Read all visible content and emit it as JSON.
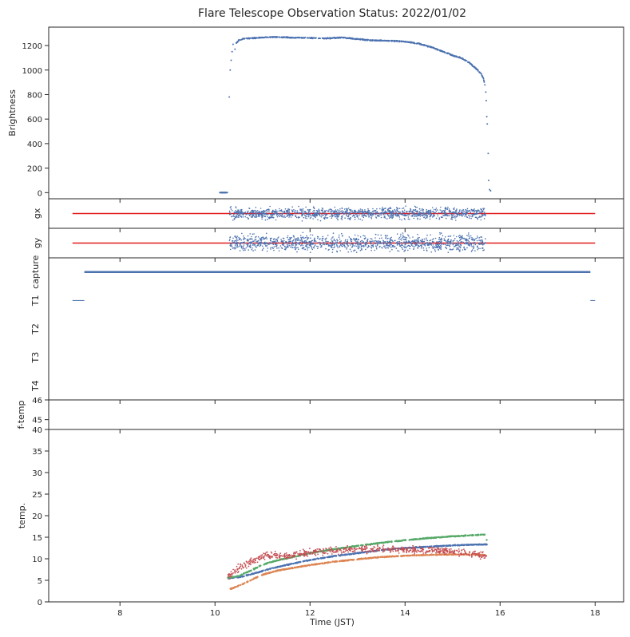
{
  "chart_data": {
    "title": "Flare Telescope Observation Status: 2022/01/02",
    "xlabel": "Time (JST)",
    "xlim": [
      6.5,
      18.6
    ],
    "xticks": [
      "8",
      "10",
      "12",
      "14",
      "16",
      "18"
    ],
    "colors": {
      "blue": "#4c72b0",
      "orange": "#dd8452",
      "green": "#55a868",
      "red": "#c44e52",
      "refline": "#e31a1c",
      "axes": "#262626"
    },
    "panels": [
      {
        "id": "brightness",
        "type": "scatter",
        "ylabel": "Brightness",
        "ylim": [
          -50,
          1350
        ],
        "yticks": [
          "0",
          "200",
          "400",
          "600",
          "800",
          "1000",
          "1200"
        ],
        "series": [
          {
            "color": "blue",
            "points": [
              [
                10.1,
                0
              ],
              [
                10.2,
                0
              ],
              [
                10.26,
                0
              ],
              [
                10.3,
                780
              ],
              [
                10.32,
                1000
              ],
              [
                10.34,
                1080
              ],
              [
                10.36,
                1150
              ],
              [
                10.38,
                1210
              ],
              [
                10.42,
                1170
              ],
              [
                10.45,
                1220
              ],
              [
                10.5,
                1245
              ],
              [
                10.6,
                1255
              ],
              [
                10.8,
                1260
              ],
              [
                11.0,
                1265
              ],
              [
                11.3,
                1270
              ],
              [
                11.6,
                1265
              ],
              [
                12.0,
                1262
              ],
              [
                12.3,
                1258
              ],
              [
                12.7,
                1265
              ],
              [
                13.0,
                1252
              ],
              [
                13.3,
                1242
              ],
              [
                13.6,
                1240
              ],
              [
                14.0,
                1232
              ],
              [
                14.3,
                1215
              ],
              [
                14.6,
                1180
              ],
              [
                14.8,
                1150
              ],
              [
                15.0,
                1120
              ],
              [
                15.2,
                1095
              ],
              [
                15.35,
                1060
              ],
              [
                15.5,
                1010
              ],
              [
                15.6,
                970
              ],
              [
                15.65,
                930
              ],
              [
                15.68,
                880
              ],
              [
                15.7,
                820
              ],
              [
                15.71,
                750
              ],
              [
                15.72,
                620
              ],
              [
                15.73,
                560
              ],
              [
                15.75,
                320
              ],
              [
                15.76,
                100
              ],
              [
                15.78,
                25
              ],
              [
                15.8,
                15
              ]
            ]
          }
        ]
      },
      {
        "id": "gx",
        "type": "scatter",
        "ylabel": "gx",
        "ylim": [
          -1,
          1
        ],
        "reference_line": {
          "y": 0,
          "x_range": [
            7.0,
            18.0
          ],
          "color": "refline"
        },
        "noise_band": {
          "x_range": [
            10.3,
            15.7
          ],
          "color": "blue",
          "spread": 0.55
        }
      },
      {
        "id": "gy",
        "type": "scatter",
        "ylabel": "gy",
        "ylim": [
          -1,
          1
        ],
        "reference_line": {
          "y": 0,
          "x_range": [
            7.0,
            18.0
          ],
          "color": "refline"
        },
        "noise_band": {
          "x_range": [
            10.3,
            15.7
          ],
          "color": "blue",
          "spread": 0.75
        }
      },
      {
        "id": "capture",
        "type": "step",
        "ylabel_ticks": [
          "capture",
          "T1",
          "T2",
          "T3",
          "T4"
        ],
        "ylim": [
          4.5,
          -0.5
        ],
        "series": [
          {
            "color": "blue",
            "segments": [
              [
                [
                  7.0,
                  1
                ],
                [
                  7.25,
                  1
                ]
              ],
              [
                [
                  7.25,
                  0
                ],
                [
                  17.9,
                  0
                ]
              ],
              [
                [
                  17.9,
                  1
                ],
                [
                  18.0,
                  1
                ]
              ]
            ]
          }
        ]
      },
      {
        "id": "ftemp",
        "type": "line",
        "ylabel": "f-temp",
        "ylim": [
          44.5,
          46
        ],
        "yticks": [
          "45",
          "46"
        ]
      },
      {
        "id": "temp",
        "type": "scatter",
        "ylabel": "temp.",
        "ylim": [
          0,
          40
        ],
        "yticks": [
          "0",
          "5",
          "10",
          "15",
          "20",
          "25",
          "30",
          "35",
          "40"
        ],
        "series": [
          {
            "color": "blue",
            "points": [
              [
                10.27,
                5.5
              ],
              [
                10.5,
                5.7
              ],
              [
                10.8,
                6.5
              ],
              [
                11.2,
                7.8
              ],
              [
                11.6,
                8.8
              ],
              [
                12.0,
                9.7
              ],
              [
                12.5,
                10.6
              ],
              [
                13.0,
                11.3
              ],
              [
                13.5,
                12.0
              ],
              [
                14.0,
                12.5
              ],
              [
                14.5,
                12.8
              ],
              [
                15.0,
                13.1
              ],
              [
                15.5,
                13.3
              ],
              [
                15.72,
                13.3
              ]
            ]
          },
          {
            "color": "orange",
            "points": [
              [
                10.27,
                2.8
              ],
              [
                10.4,
                3.3
              ],
              [
                10.6,
                4.2
              ],
              [
                10.8,
                5.3
              ],
              [
                11.0,
                6.3
              ],
              [
                11.3,
                7.2
              ],
              [
                11.7,
                8.0
              ],
              [
                12.1,
                8.7
              ],
              [
                12.5,
                9.3
              ],
              [
                13.0,
                9.9
              ],
              [
                13.5,
                10.4
              ],
              [
                14.0,
                10.7
              ],
              [
                14.5,
                10.9
              ],
              [
                15.0,
                11.0
              ],
              [
                15.5,
                11.0
              ],
              [
                15.72,
                10.9
              ]
            ]
          },
          {
            "color": "green",
            "points": [
              [
                10.27,
                5.6
              ],
              [
                10.5,
                6.0
              ],
              [
                10.8,
                7.5
              ],
              [
                11.0,
                8.6
              ],
              [
                11.3,
                9.6
              ],
              [
                11.7,
                10.5
              ],
              [
                12.0,
                11.3
              ],
              [
                12.5,
                12.2
              ],
              [
                13.0,
                13.0
              ],
              [
                13.5,
                13.7
              ],
              [
                14.0,
                14.3
              ],
              [
                14.5,
                14.8
              ],
              [
                15.0,
                15.2
              ],
              [
                15.5,
                15.5
              ],
              [
                15.68,
                15.6
              ],
              [
                15.72,
                14.3
              ]
            ]
          },
          {
            "color": "red",
            "points": [
              [
                10.27,
                5.8
              ],
              [
                10.5,
                7.8
              ],
              [
                10.8,
                9.5
              ],
              [
                11.0,
                10.5
              ],
              [
                11.3,
                10.8
              ],
              [
                11.6,
                10.5
              ],
              [
                11.8,
                11.2
              ],
              [
                12.1,
                11.6
              ],
              [
                12.5,
                11.9
              ],
              [
                13.0,
                12.1
              ],
              [
                13.5,
                12.2
              ],
              [
                14.0,
                12.2
              ],
              [
                14.5,
                12.0
              ],
              [
                15.0,
                11.6
              ],
              [
                15.3,
                11.2
              ],
              [
                15.5,
                11.0
              ],
              [
                15.72,
                10.6
              ]
            ],
            "spread": 1.2
          }
        ]
      }
    ]
  }
}
